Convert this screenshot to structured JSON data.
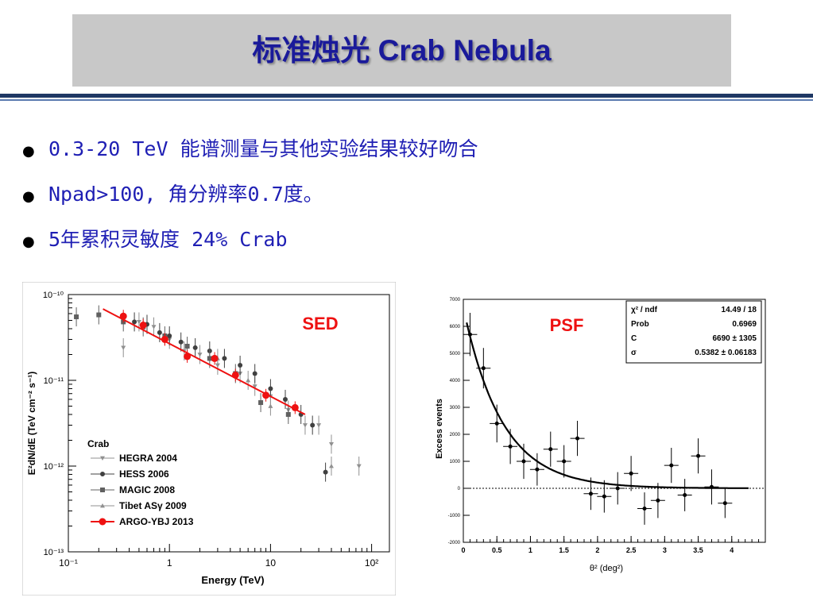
{
  "slide": {
    "title": "标准烛光 Crab Nebula",
    "bullets": [
      "0.3-20 TeV 能谱测量与其他实验结果较好吻合",
      "Npad>100, 角分辨率0.7度。",
      "5年累积灵敏度 24% Crab"
    ]
  },
  "colors": {
    "title": "#1a1a9a",
    "bullets": "#1f1fb4",
    "header_bar": "#c8c8c8",
    "rule": "#1f3864",
    "argo": "#ee1111"
  },
  "chart_data": [
    {
      "type": "scatter",
      "label": "SED",
      "xlabel": "Energy (TeV)",
      "ylabel": "E²dN/dE (TeV cm⁻² s⁻¹)",
      "xscale": "log",
      "yscale": "log",
      "xlim": [
        0.1,
        150
      ],
      "ylim": [
        1e-13,
        1e-10
      ],
      "x_ticks": [
        "10⁻¹",
        "1",
        "10",
        "10²"
      ],
      "y_ticks": [
        "10⁻¹⁰",
        "10⁻¹¹",
        "10⁻¹²",
        "10⁻¹³"
      ],
      "legend_title": "Crab",
      "legend_position": "bottom-left",
      "series": [
        {
          "name": "HEGRA 2004",
          "marker": "triangle-down",
          "color": "#909090",
          "points": [
            [
              0.35,
              2.4e-11
            ],
            [
              0.5,
              4.8e-11
            ],
            [
              0.7,
              4.2e-11
            ],
            [
              1.0,
              3e-11
            ],
            [
              1.4,
              2.2e-11
            ],
            [
              2.0,
              2e-11
            ],
            [
              3.0,
              1.5e-11
            ],
            [
              5.0,
              1.2e-11
            ],
            [
              7.0,
              8.5e-12
            ],
            [
              10.0,
              6.5e-12
            ],
            [
              15.0,
              4.5e-12
            ],
            [
              22.0,
              3e-12
            ],
            [
              30.0,
              3e-12
            ],
            [
              40.0,
              1.8e-12
            ],
            [
              75.0,
              1e-12
            ]
          ]
        },
        {
          "name": "HESS 2006",
          "marker": "circle",
          "color": "#404040",
          "points": [
            [
              0.45,
              4.8e-11
            ],
            [
              0.6,
              4.5e-11
            ],
            [
              0.8,
              3.6e-11
            ],
            [
              1.0,
              3.3e-11
            ],
            [
              1.3,
              2.8e-11
            ],
            [
              1.8,
              2.4e-11
            ],
            [
              2.5,
              2.2e-11
            ],
            [
              3.5,
              1.8e-11
            ],
            [
              5.0,
              1.5e-11
            ],
            [
              7.0,
              1.2e-11
            ],
            [
              10.0,
              8e-12
            ],
            [
              14.0,
              6e-12
            ],
            [
              20.0,
              4e-12
            ],
            [
              26.0,
              3e-12
            ],
            [
              35.0,
              8.5e-13
            ]
          ]
        },
        {
          "name": "MAGIC 2008",
          "marker": "square",
          "color": "#606060",
          "points": [
            [
              0.12,
              5.5e-11
            ],
            [
              0.2,
              5.8e-11
            ],
            [
              0.35,
              4.8e-11
            ],
            [
              0.55,
              4.2e-11
            ],
            [
              0.9,
              3.3e-11
            ],
            [
              1.5,
              2.5e-11
            ],
            [
              2.5,
              1.8e-11
            ],
            [
              4.5,
              1.2e-11
            ],
            [
              8.0,
              5.5e-12
            ],
            [
              15.0,
              4e-12
            ]
          ]
        },
        {
          "name": "Tibet ASγ 2009",
          "marker": "triangle-up",
          "color": "#909090",
          "points": [
            [
              3.0,
              1.8e-11
            ],
            [
              6.0,
              1e-11
            ],
            [
              10.0,
              5e-12
            ],
            [
              40.0,
              1e-12
            ]
          ]
        },
        {
          "name": "ARGO-YBJ 2013",
          "marker": "circle",
          "color": "#ee1111",
          "points": [
            [
              0.35,
              5.6e-11
            ],
            [
              0.55,
              4.4e-11
            ],
            [
              0.9,
              3e-11
            ],
            [
              1.5,
              1.9e-11
            ],
            [
              2.8,
              1.8e-11
            ],
            [
              4.5,
              1.15e-11
            ],
            [
              9.0,
              6.7e-12
            ],
            [
              17.5,
              4.8e-12
            ]
          ],
          "fit_line": [
            [
              0.22,
              6.8e-11
            ],
            [
              22.0,
              4e-12
            ]
          ]
        }
      ]
    },
    {
      "type": "scatter",
      "label": "PSF",
      "xlabel": "θ² (deg²)",
      "ylabel": "Excess events",
      "xlim": [
        0,
        4.5
      ],
      "ylim": [
        -2000,
        7000
      ],
      "x_ticks": [
        "0",
        "0.5",
        "1",
        "1.5",
        "2",
        "2.5",
        "3",
        "3.5",
        "4"
      ],
      "y_ticks": [
        "7000",
        "6000",
        "5000",
        "4000",
        "3000",
        "2000",
        "1000",
        "0",
        "-1000",
        "-2000"
      ],
      "stats": [
        {
          "key": "χ² / ndf",
          "value": "14.49 / 18"
        },
        {
          "key": "Prob",
          "value": "0.6969"
        },
        {
          "key": "C",
          "value": "6690 ± 1305"
        },
        {
          "key": "σ",
          "value": "0.5382 ± 0.06183"
        }
      ],
      "points": [
        [
          0.1,
          5700
        ],
        [
          0.3,
          4450
        ],
        [
          0.5,
          2400
        ],
        [
          0.7,
          1550
        ],
        [
          0.9,
          1000
        ],
        [
          1.1,
          700
        ],
        [
          1.3,
          1450
        ],
        [
          1.5,
          1000
        ],
        [
          1.7,
          1850
        ],
        [
          1.9,
          -200
        ],
        [
          2.1,
          -300
        ],
        [
          2.3,
          0
        ],
        [
          2.5,
          550
        ],
        [
          2.7,
          -750
        ],
        [
          2.9,
          -450
        ],
        [
          3.1,
          850
        ],
        [
          3.3,
          -250
        ],
        [
          3.5,
          1200
        ],
        [
          3.7,
          50
        ],
        [
          3.9,
          -550
        ]
      ],
      "y_errors": [
        800,
        750,
        700,
        650,
        650,
        600,
        650,
        600,
        650,
        600,
        600,
        600,
        650,
        600,
        650,
        650,
        600,
        650,
        650,
        550
      ],
      "fit": {
        "C": 6690,
        "sigma": 0.5382
      }
    }
  ]
}
